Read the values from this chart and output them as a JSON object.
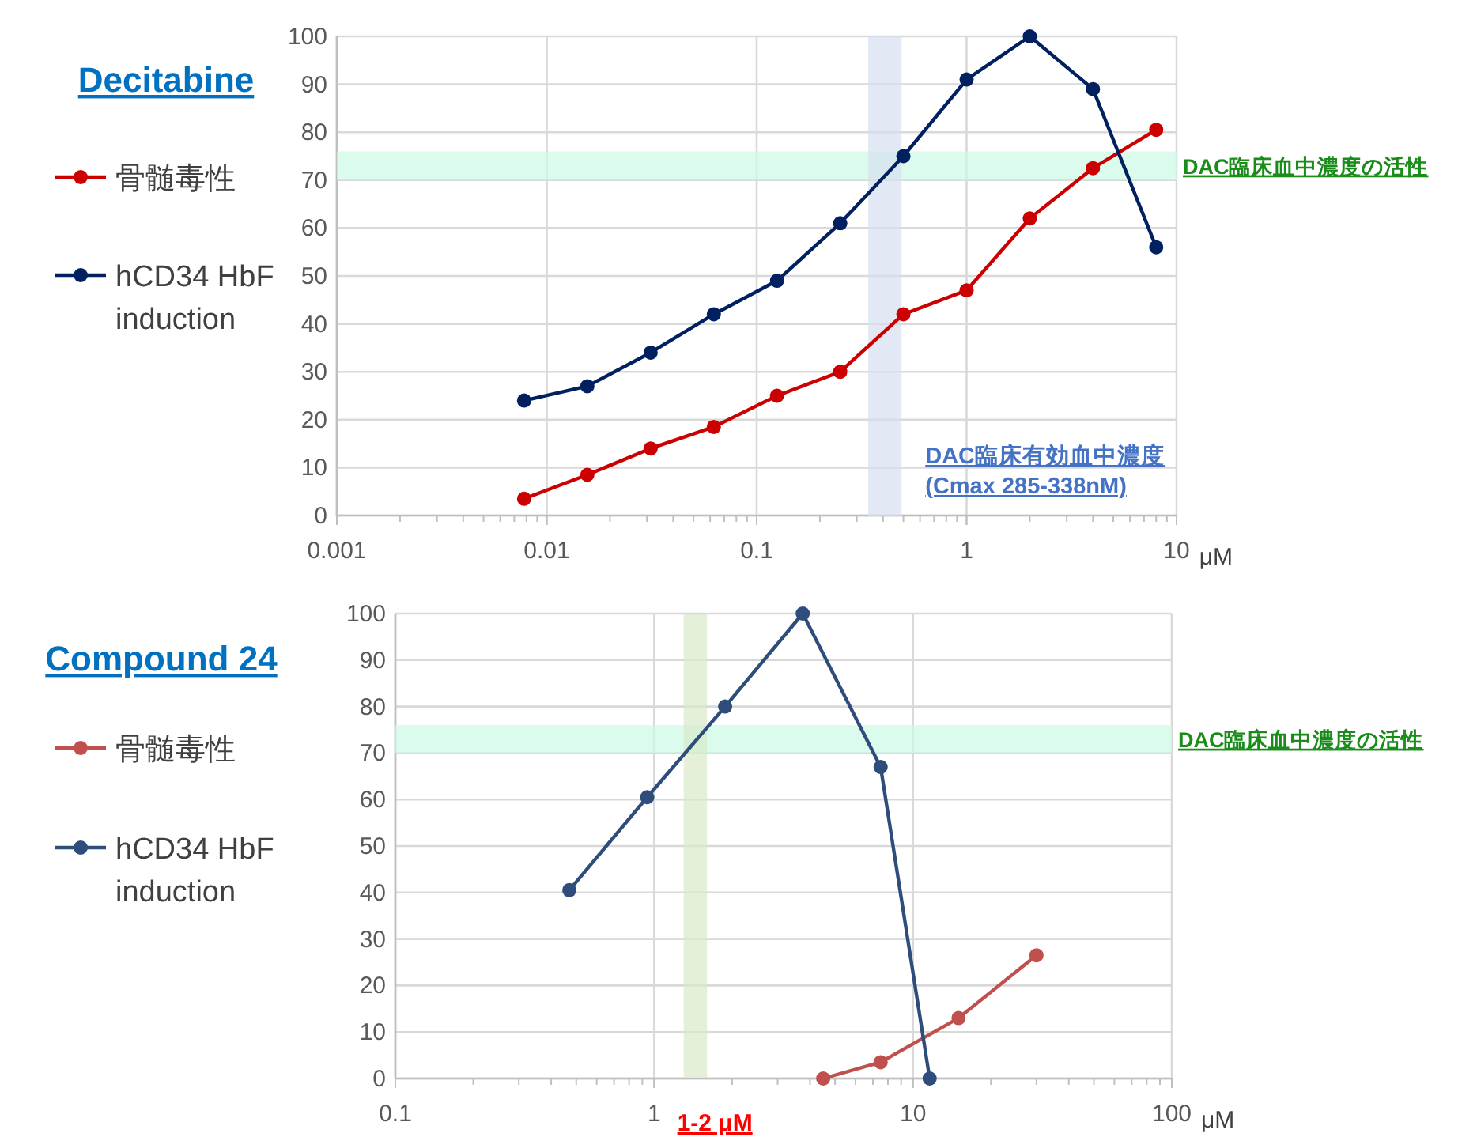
{
  "chart_data": [
    {
      "type": "line",
      "title": "Decitabine",
      "xlabel": "μM",
      "log": "x",
      "xlim": [
        0.001,
        10
      ],
      "xticks": [
        0.001,
        0.01,
        0.1,
        1,
        10
      ],
      "ylim": [
        0,
        100
      ],
      "yticks": [
        0,
        10,
        20,
        30,
        40,
        50,
        60,
        70,
        80,
        90,
        100
      ],
      "grid": true,
      "legend": "left",
      "marker": "circle",
      "series": [
        {
          "name": "骨髄毒性",
          "color": "#cc0000",
          "x": [
            0.0078,
            0.0156,
            0.03125,
            0.0625,
            0.125,
            0.25,
            0.5,
            1,
            2,
            4,
            8
          ],
          "values": [
            3.5,
            8.5,
            14,
            18.5,
            25,
            30,
            42,
            47,
            62,
            72.5,
            80.5
          ]
        },
        {
          "name": "hCD34 HbF induction",
          "color": "#002060",
          "x": [
            0.0078,
            0.0156,
            0.03125,
            0.0625,
            0.125,
            0.25,
            0.5,
            1,
            2,
            4,
            8
          ],
          "values": [
            24,
            27,
            34,
            42,
            49,
            61,
            75,
            91,
            100,
            89,
            56
          ]
        }
      ],
      "bands": [
        {
          "axis": "y",
          "from": 70,
          "to": 76,
          "label": "DAC臨床血中濃度の活性",
          "color": "#ccfae4"
        },
        {
          "axis": "x",
          "from": 0.34,
          "to": 0.49,
          "label": "DAC臨床有効血中濃度 (Cmax 285-338nM)",
          "color": "#d6dfef"
        }
      ]
    },
    {
      "type": "line",
      "title": "Compound 24",
      "xlabel": "μM",
      "log": "x",
      "xlim": [
        0.1,
        100
      ],
      "xticks": [
        0.1,
        1,
        10,
        100
      ],
      "ylim": [
        0,
        100
      ],
      "yticks": [
        0,
        10,
        20,
        30,
        40,
        50,
        60,
        70,
        80,
        90,
        100
      ],
      "grid": true,
      "legend": "left",
      "marker": "circle",
      "series": [
        {
          "name": "骨髄毒性",
          "color": "#c0504d",
          "x": [
            4.5,
            7.5,
            15,
            30
          ],
          "values": [
            0,
            3.5,
            13,
            26.5
          ]
        },
        {
          "name": "hCD34 HbF induction",
          "color": "#2e4d7b",
          "x": [
            0.47,
            0.94,
            1.88,
            3.75,
            7.5,
            11.6
          ],
          "values": [
            40.5,
            60.5,
            80,
            100,
            67,
            0
          ]
        }
      ],
      "bands": [
        {
          "axis": "y",
          "from": 70,
          "to": 76,
          "label": "DAC臨床血中濃度の活性",
          "color": "#ccfae4"
        },
        {
          "axis": "x",
          "from": 1.3,
          "to": 1.6,
          "label": "1-2 μM",
          "color": "#d8e9cb"
        }
      ]
    }
  ]
}
